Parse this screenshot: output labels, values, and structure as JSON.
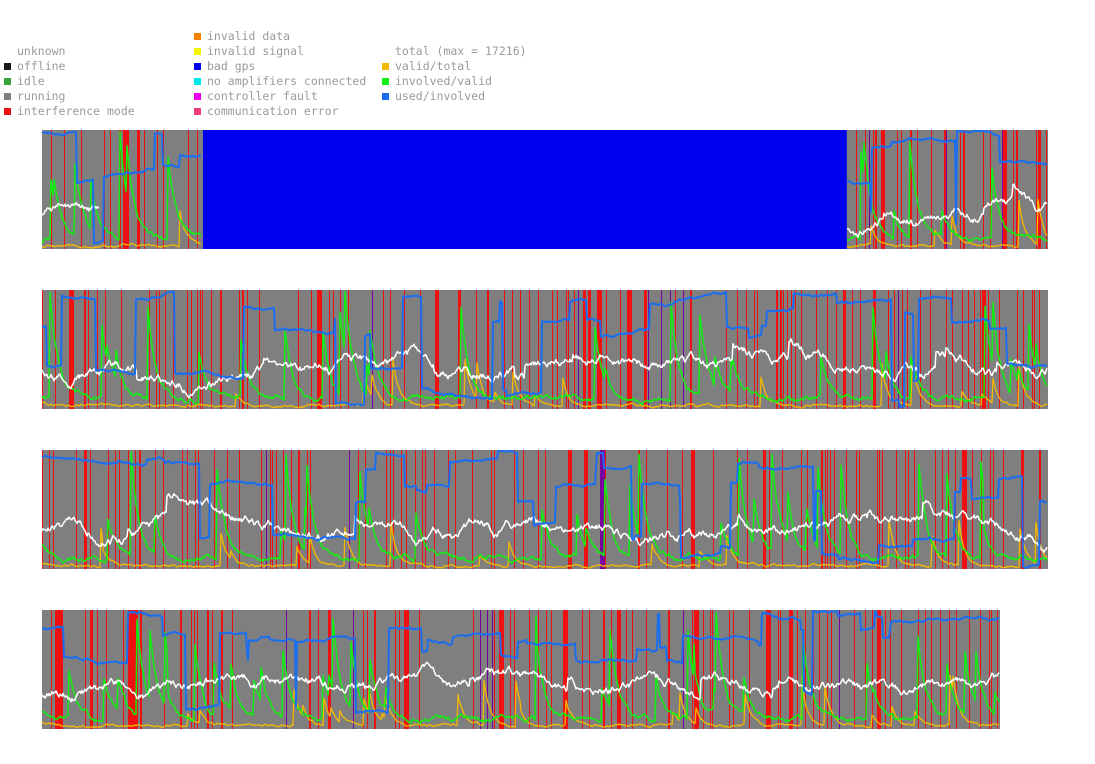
{
  "legend": {
    "col1": [
      {
        "label": "unknown",
        "color": ""
      },
      {
        "label": "offline",
        "color": "#1a1a1a"
      },
      {
        "label": "idle",
        "color": "#3aa23a"
      },
      {
        "label": "running",
        "color": "#7f7f7f"
      },
      {
        "label": "interference mode",
        "color": "#ee1111"
      }
    ],
    "col2": [
      {
        "label": "invalid data",
        "color": "#f77f00"
      },
      {
        "label": "invalid signal",
        "color": "#f5f500"
      },
      {
        "label": "bad gps",
        "color": "#0000ee"
      },
      {
        "label": "no amplifiers connected",
        "color": "#00e8e8"
      },
      {
        "label": "controller fault",
        "color": "#ee00ee"
      },
      {
        "label": "communication error",
        "color": "#ee3d7a"
      }
    ],
    "col3": [
      {
        "label": "total (max = 17216)",
        "color": ""
      },
      {
        "label": "valid/total",
        "color": "#f5b800"
      },
      {
        "label": "involved/valid",
        "color": "#11ee11"
      },
      {
        "label": "used/involved",
        "color": "#1c6ef0"
      }
    ]
  },
  "colors": {
    "running": "#7f7f7f",
    "interference": "#ee1111",
    "bad_gps": "#0000ee",
    "total": "#ffffff",
    "valid_total": "#f5b800",
    "involved_valid": "#11ee11",
    "used_involved": "#1c6ef0",
    "controller_fault": "#7a00a0"
  },
  "chart_data": [
    {
      "type": "line",
      "panel": 1,
      "ylim": [
        0,
        1
      ],
      "bad_gps_span": [
        0.16,
        0.8
      ],
      "total_start": 0.3,
      "used_involved_start": 0.99,
      "involved_valid_start": 0.03,
      "valid_total_start": 0.01
    },
    {
      "type": "line",
      "panel": 2,
      "ylim": [
        0,
        1
      ],
      "total_start": 0.35,
      "used_involved_start": 0.7,
      "involved_valid_start": 0.1,
      "valid_total_start": 0.05
    },
    {
      "type": "line",
      "panel": 3,
      "ylim": [
        0,
        1
      ],
      "total_start": 0.3,
      "used_involved_start": 0.95,
      "involved_valid_start": 0.2,
      "valid_total_start": 0.03
    },
    {
      "type": "line",
      "panel": 4,
      "ylim": [
        0,
        1
      ],
      "total_start": 0.3,
      "used_involved_start": 0.85,
      "involved_valid_start": 0.15,
      "valid_total_start": 0.05
    }
  ]
}
